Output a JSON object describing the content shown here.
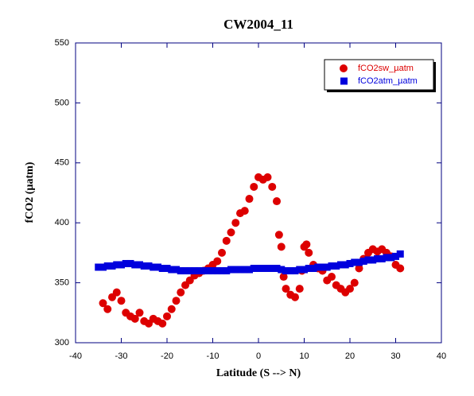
{
  "chart_data": {
    "type": "scatter",
    "title": "CW2004_11",
    "x_label": "Latitude (S --> N)",
    "y_label": "fCO2 (µatm)",
    "xlim": [
      -40,
      40
    ],
    "xticks": [
      -40,
      -30,
      -20,
      -10,
      0,
      10,
      20,
      30,
      40
    ],
    "ylim": [
      300,
      550
    ],
    "yticks": [
      300,
      350,
      400,
      450,
      500,
      550
    ],
    "legend": "top-right",
    "series": [
      {
        "name": "fCO2sw_µatm",
        "color": "#dd0000",
        "marker": "circle",
        "x": [
          -34,
          -33,
          -32,
          -31,
          -30,
          -29,
          -28,
          -27,
          -26,
          -25,
          -24,
          -23,
          -22,
          -21,
          -20,
          -19,
          -18,
          -17,
          -16,
          -15,
          -14,
          -13,
          -12,
          -11,
          -10,
          -9,
          -8,
          -7,
          -6,
          -5,
          -4,
          -3,
          -2,
          -1,
          0,
          1,
          2,
          3,
          4,
          4.5,
          5,
          5.5,
          6,
          7,
          8,
          9,
          9.5,
          10,
          10.5,
          11,
          12,
          13,
          14,
          15,
          16,
          17,
          18,
          19,
          20,
          21,
          22,
          23,
          24,
          25,
          26,
          27,
          28,
          29,
          30,
          31
        ],
        "values": [
          333,
          328,
          338,
          342,
          335,
          325,
          322,
          320,
          325,
          318,
          316,
          320,
          318,
          316,
          322,
          328,
          335,
          342,
          348,
          352,
          356,
          358,
          360,
          362,
          365,
          368,
          375,
          385,
          392,
          400,
          408,
          410,
          420,
          430,
          438,
          436,
          438,
          430,
          418,
          390,
          380,
          355,
          345,
          340,
          338,
          345,
          360,
          380,
          382,
          375,
          365,
          362,
          360,
          352,
          355,
          348,
          345,
          342,
          345,
          350,
          362,
          370,
          375,
          378,
          376,
          378,
          375,
          372,
          365,
          362
        ]
      },
      {
        "name": "fCO2atm_µatm",
        "color": "#0000dd",
        "marker": "square",
        "x": [
          -35,
          -34,
          -33,
          -32,
          -31,
          -30,
          -29,
          -28,
          -27,
          -26,
          -25,
          -24,
          -23,
          -22,
          -21,
          -20,
          -19,
          -18,
          -17,
          -16,
          -15,
          -14,
          -13,
          -12,
          -11,
          -10,
          -9,
          -8,
          -7,
          -6,
          -5,
          -4,
          -3,
          -2,
          -1,
          0,
          1,
          2,
          3,
          4,
          5,
          6,
          7,
          8,
          9,
          10,
          11,
          12,
          13,
          14,
          15,
          16,
          17,
          18,
          19,
          20,
          21,
          22,
          23,
          24,
          25,
          26,
          27,
          28,
          29,
          30,
          31
        ],
        "values": [
          363,
          363,
          364,
          364,
          365,
          365,
          366,
          366,
          365,
          365,
          364,
          364,
          363,
          363,
          362,
          362,
          361,
          361,
          360,
          360,
          360,
          360,
          360,
          360,
          360,
          360,
          360,
          360,
          360,
          361,
          361,
          361,
          361,
          361,
          362,
          362,
          362,
          362,
          362,
          362,
          361,
          360,
          360,
          360,
          361,
          361,
          362,
          362,
          363,
          363,
          363,
          364,
          364,
          365,
          365,
          366,
          367,
          367,
          368,
          369,
          369,
          370,
          370,
          371,
          371,
          372,
          374
        ]
      }
    ]
  }
}
